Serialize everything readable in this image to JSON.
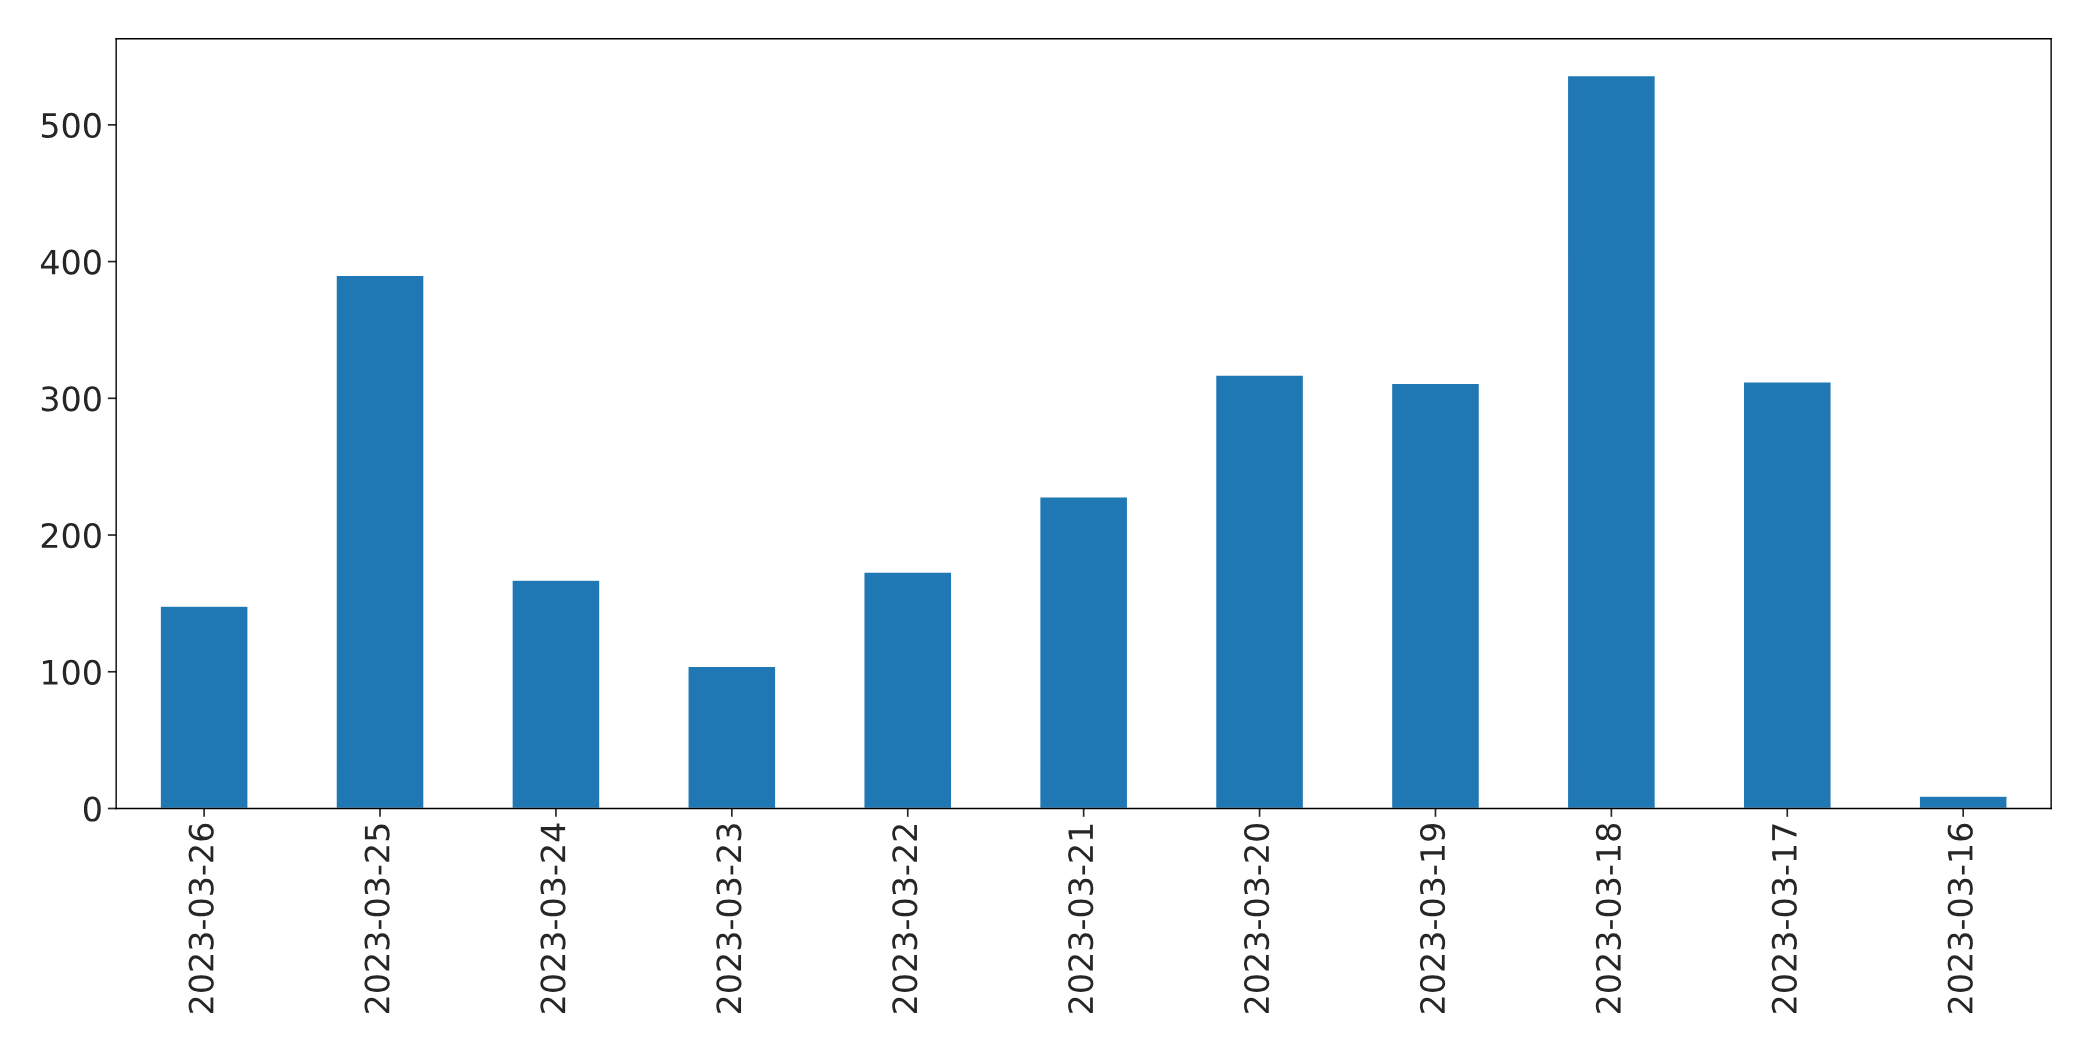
{
  "chart_data": {
    "type": "bar",
    "categories": [
      "2023-03-26",
      "2023-03-25",
      "2023-03-24",
      "2023-03-23",
      "2023-03-22",
      "2023-03-21",
      "2023-03-20",
      "2023-03-19",
      "2023-03-18",
      "2023-03-17",
      "2023-03-16"
    ],
    "values": [
      148,
      390,
      167,
      104,
      173,
      228,
      317,
      311,
      536,
      312,
      9
    ],
    "color": "#1f77b4",
    "ylim": [
      0,
      563
    ],
    "yticks": [
      0,
      100,
      200,
      300,
      400,
      500
    ],
    "grid": false
  }
}
